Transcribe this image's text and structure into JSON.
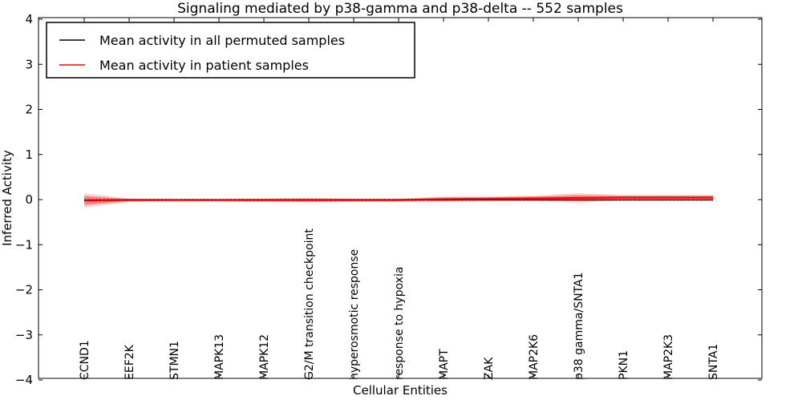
{
  "chart_data": {
    "type": "line",
    "title": "Signaling mediated by p38-gamma and p38-delta -- 552 samples",
    "xlabel": "Cellular Entities",
    "ylabel": "Inferred Activity",
    "ylim": [
      -4,
      4
    ],
    "ytick_labels": [
      "4",
      "3",
      "2",
      "1",
      "0",
      "−1",
      "−2",
      "−3",
      "−4"
    ],
    "ytick_values": [
      4,
      3,
      2,
      1,
      0,
      -1,
      -2,
      -3,
      -4
    ],
    "grid": false,
    "legend_position": "upper left",
    "categories": [
      "CCND1",
      "EEF2K",
      "STMN1",
      "MAPK13",
      "MAPK12",
      "G2/M transition checkpoint",
      "hyperosmotic response",
      "response to hypoxia",
      "MAPT",
      "ZAK",
      "MAP2K6",
      "p38 gamma/SNTA1",
      "PKN1",
      "MAP2K3",
      "SNTA1"
    ],
    "series": [
      {
        "name": "Mean activity in all permuted samples",
        "color": "#000000",
        "style": "solid-with-dotted-overlay",
        "values": [
          -0.009,
          -0.009,
          -0.009,
          -0.009,
          -0.009,
          -0.009,
          -0.009,
          -0.009,
          -0.009,
          -0.009,
          -0.009,
          -0.009,
          -0.009,
          -0.009,
          -0.009
        ]
      },
      {
        "name": "Mean activity in patient samples",
        "color": "#ff0000",
        "style": "solid",
        "values": [
          -0.018,
          -0.009,
          -0.009,
          -0.009,
          -0.009,
          -0.009,
          -0.009,
          -0.009,
          0.009,
          0.018,
          0.027,
          0.036,
          0.044,
          0.044,
          0.044
        ]
      }
    ],
    "band": {
      "color": "#ff0000",
      "around_series": "Mean activity in patient samples",
      "outer_halfwidth": [
        0.16,
        0.036,
        0.032,
        0.032,
        0.039,
        0.053,
        0.036,
        0.036,
        0.062,
        0.053,
        0.062,
        0.107,
        0.062,
        0.062,
        0.062
      ],
      "inner_halfwidth": [
        0.089,
        0.021,
        0.018,
        0.018,
        0.021,
        0.027,
        0.021,
        0.021,
        0.036,
        0.032,
        0.036,
        0.053,
        0.036,
        0.036,
        0.036
      ]
    }
  }
}
